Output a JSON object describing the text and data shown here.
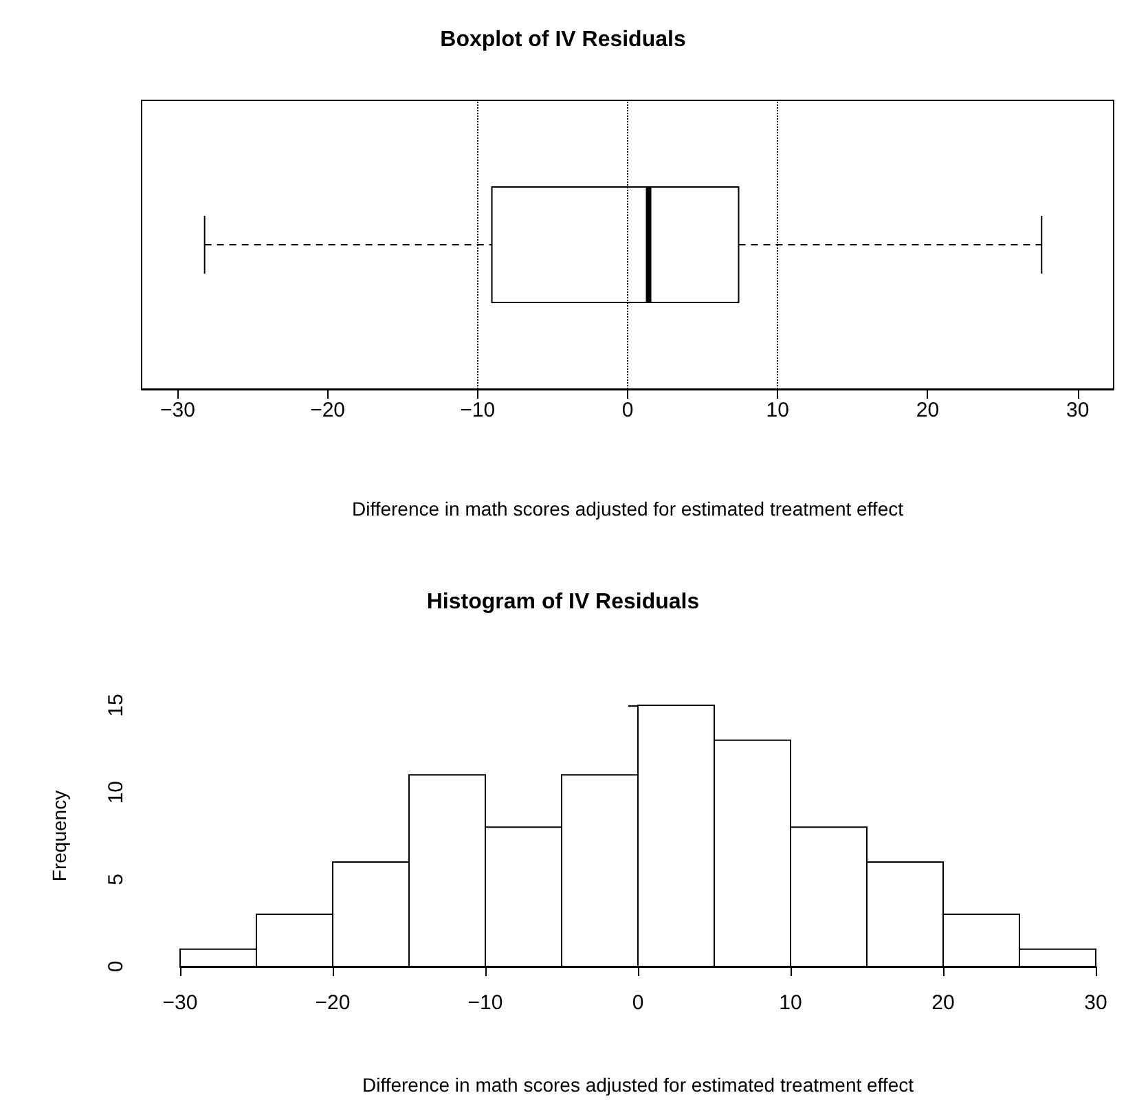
{
  "chart_data": [
    {
      "type": "box",
      "title": "Boxplot of IV Residuals",
      "xlabel": "Difference in math scores adjusted for estimated treatment effect",
      "orientation": "horizontal",
      "categories": [
        null
      ],
      "boxes": [
        {
          "low": -28.2,
          "q1": -9.05,
          "median": 1.4,
          "q3": 7.4,
          "high": 27.6
        }
      ],
      "xlim": [
        -32.4,
        32.4
      ],
      "xticks": [
        -30,
        -20,
        -10,
        0,
        10,
        20,
        30
      ],
      "tick_labels": "x",
      "grid": false,
      "ref_lines": [
        {
          "axis": "x",
          "value": -10,
          "label": null,
          "line_style": "dotted"
        },
        {
          "axis": "x",
          "value": 0,
          "label": null,
          "line_style": "dotted"
        },
        {
          "axis": "x",
          "value": 10,
          "label": null,
          "line_style": "dotted"
        }
      ]
    },
    {
      "type": "histogram",
      "title": "Histogram of IV Residuals",
      "xlabel": "Difference in math scores adjusted for estimated treatment effect",
      "ylabel": "Frequency",
      "color": "#ffffff",
      "bins": [
        -30,
        -25,
        -20,
        -15,
        -10,
        -5,
        0,
        5,
        10,
        15,
        20,
        25,
        30
      ],
      "values": [
        1,
        3,
        6,
        11,
        8,
        11,
        15,
        13,
        8,
        6,
        3,
        1
      ],
      "xlim": [
        -30,
        30
      ],
      "xticks": [
        -30,
        -20,
        -10,
        0,
        10,
        20,
        30
      ],
      "ylim": [
        0,
        15
      ],
      "yticks": [
        0,
        5,
        10,
        15
      ],
      "grid": false
    }
  ]
}
